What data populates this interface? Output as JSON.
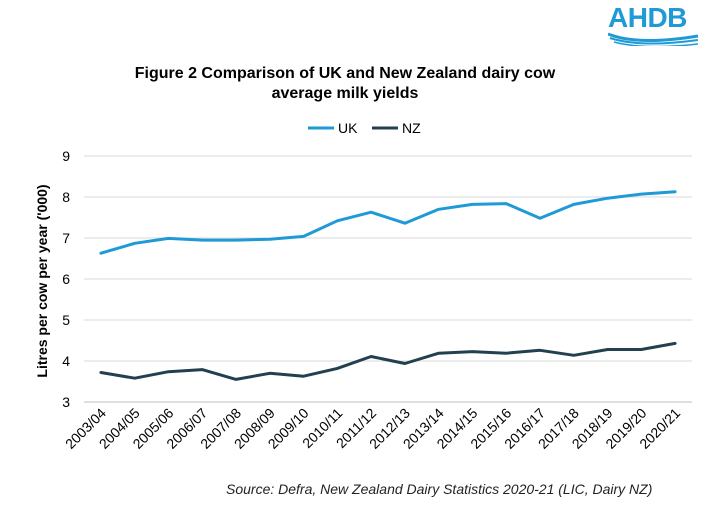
{
  "header": {
    "logo_text": "AHDB",
    "title_line1": "Figure 2  Comparison of UK and New Zealand dairy cow",
    "title_line2": "average milk yields"
  },
  "footer": {
    "source": "Source: Defra, New Zealand Dairy Statistics 2020-21 (LIC, Dairy NZ)"
  },
  "chart_data": {
    "type": "line",
    "title": "Figure 2  Comparison of UK and New Zealand dairy cow average milk yields",
    "xlabel": "",
    "ylabel": "Litres per cow per year ('000)",
    "ylim": [
      3,
      9
    ],
    "yticks": [
      "3",
      "4",
      "5",
      "6",
      "7",
      "8",
      "9"
    ],
    "grid": "horizontal",
    "legend": "top-center",
    "categories": [
      "2003/04",
      "2004/05",
      "2005/06",
      "2006/07",
      "2007/08",
      "2008/09",
      "2009/10",
      "2010/11",
      "2011/12",
      "2012/13",
      "2013/14",
      "2014/15",
      "2015/16",
      "2016/17",
      "2017/18",
      "2018/19",
      "2019/20",
      "2020/21"
    ],
    "series": [
      {
        "name": "UK",
        "color": "#1f9ad6",
        "values": [
          6.63,
          6.87,
          6.99,
          6.95,
          6.95,
          6.97,
          7.04,
          7.42,
          7.63,
          7.36,
          7.7,
          7.82,
          7.84,
          7.48,
          7.82,
          7.97,
          8.07,
          8.13
        ]
      },
      {
        "name": "NZ",
        "color": "#22404f",
        "values": [
          3.72,
          3.58,
          3.74,
          3.79,
          3.55,
          3.7,
          3.63,
          3.82,
          4.11,
          3.94,
          4.19,
          4.23,
          4.19,
          4.26,
          4.14,
          4.28,
          4.28,
          4.43
        ]
      }
    ]
  }
}
